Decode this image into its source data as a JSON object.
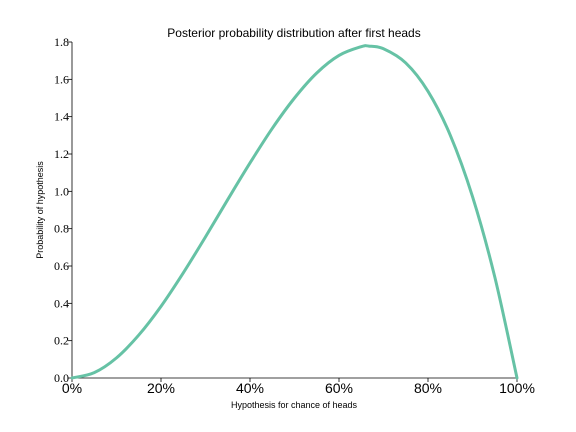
{
  "chart_data": {
    "type": "line",
    "title": "Posterior probability distribution after first heads",
    "xlabel": "Hypothesis for chance of heads",
    "ylabel": "Probability of hypothesis",
    "xlim": [
      0,
      1
    ],
    "ylim": [
      0,
      1.8
    ],
    "x_ticks": [
      0,
      0.2,
      0.4,
      0.6,
      0.8,
      1.0
    ],
    "x_tick_labels": [
      "0%",
      "20%",
      "40%",
      "60%",
      "80%",
      "100%"
    ],
    "y_ticks": [
      0.0,
      0.2,
      0.4,
      0.6,
      0.8,
      1.0,
      1.2,
      1.4,
      1.6,
      1.8
    ],
    "y_tick_labels": [
      "0.0",
      "0.2",
      "0.4",
      "0.6",
      "0.8",
      "1.0",
      "1.2",
      "1.4",
      "1.6",
      "1.8"
    ],
    "grid": false,
    "series": [
      {
        "color": "#66c2a5",
        "x": [
          0.0,
          0.05,
          0.1,
          0.15,
          0.2,
          0.25,
          0.3,
          0.35,
          0.4,
          0.45,
          0.5,
          0.55,
          0.6,
          0.65,
          0.667,
          0.7,
          0.75,
          0.8,
          0.85,
          0.9,
          0.95,
          1.0
        ],
        "y": [
          0.0,
          0.029,
          0.108,
          0.23,
          0.384,
          0.563,
          0.756,
          0.956,
          1.152,
          1.337,
          1.5,
          1.634,
          1.728,
          1.775,
          1.778,
          1.764,
          1.688,
          1.536,
          1.301,
          0.972,
          0.542,
          0.0
        ]
      }
    ]
  }
}
